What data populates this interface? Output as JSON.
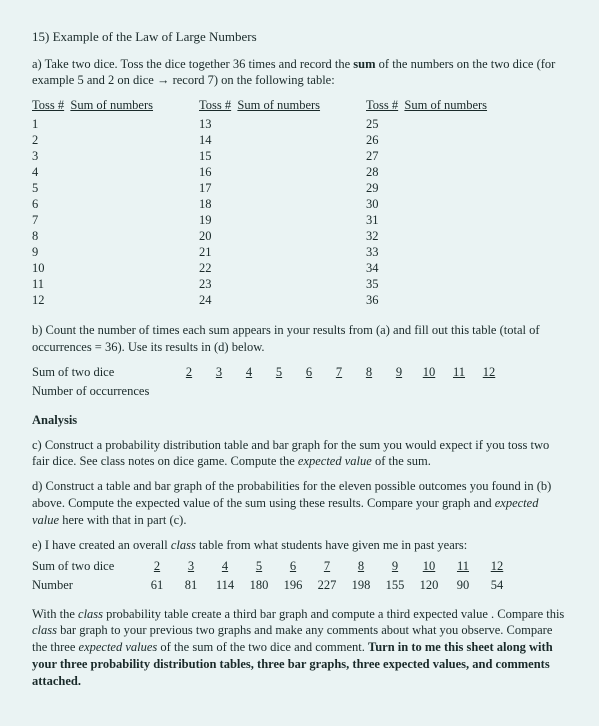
{
  "title": "15) Example of the Law of Large Numbers",
  "part_a": {
    "text_before_bold": "a)  Take two dice.  Toss the dice together 36 times and record the ",
    "bold_word": "sum",
    "text_after_bold": " of the numbers on the two dice (for example 5 and 2 on dice → record 7) on the following table:"
  },
  "toss_table": {
    "head_toss": "Toss #",
    "head_sum": "Sum of numbers",
    "cols": [
      {
        "rows": [
          "1",
          "2",
          "3",
          "4",
          "5",
          "6",
          "7",
          "8",
          "9",
          "10",
          "11",
          "12"
        ]
      },
      {
        "rows": [
          "13",
          "14",
          "15",
          "16",
          "17",
          "18",
          "19",
          "20",
          "21",
          "22",
          "23",
          "24"
        ]
      },
      {
        "rows": [
          "25",
          "26",
          "27",
          "28",
          "29",
          "30",
          "31",
          "32",
          "33",
          "34",
          "35",
          "36"
        ]
      }
    ]
  },
  "part_b": "b) Count the number of times each sum appears in your results from (a) and fill out this table (total of occurrences = 36). Use its results in (d) below.",
  "sum_table": {
    "row1_label": "Sum of two dice",
    "row2_label": "Number of occurrences",
    "values": [
      "2",
      "3",
      "4",
      "5",
      "6",
      "7",
      "8",
      "9",
      "10",
      "11",
      "12"
    ]
  },
  "analysis_head": "Analysis",
  "part_c": {
    "t1": "c) Construct a probability distribution table and bar graph for the sum you would expect if you toss two fair dice. See class notes on dice game. Compute the ",
    "italic": "expected value",
    "t2": " of the sum."
  },
  "part_d": {
    "t1": "d)   Construct a table and bar graph of the probabilities for the eleven possible outcomes you found in (b) above. Compute the expected value of the sum using these results. Compare your graph and ",
    "italic": "expected value",
    "t2": " here with that in part (c)."
  },
  "part_e": {
    "intro_t1": "e)  I have created an overall ",
    "intro_italic": "class",
    "intro_t2": " table from what students have given me in past years:",
    "row1_label": "Sum of two dice",
    "row2_label": "Number",
    "heads": [
      "2",
      "3",
      "4",
      "5",
      "6",
      "7",
      "8",
      "9",
      "10",
      "11",
      "12"
    ],
    "nums": [
      "61",
      "81",
      "114",
      "180",
      "196",
      "227",
      "198",
      "155",
      "120",
      "90",
      "54"
    ]
  },
  "closing": {
    "t1": "With the ",
    "i1": "class",
    "t2": " probability table create a third bar graph and compute a third expected value . Compare this ",
    "i2": "class",
    "t3": " bar graph to your previous two graphs and make any comments about what you observe. Compare the three ",
    "i3": "expected values",
    "t4": " of the sum of the two dice and comment. ",
    "bold": "Turn in to me this sheet along with your three probability distribution tables, three bar graphs, three expected values, and comments attached."
  }
}
